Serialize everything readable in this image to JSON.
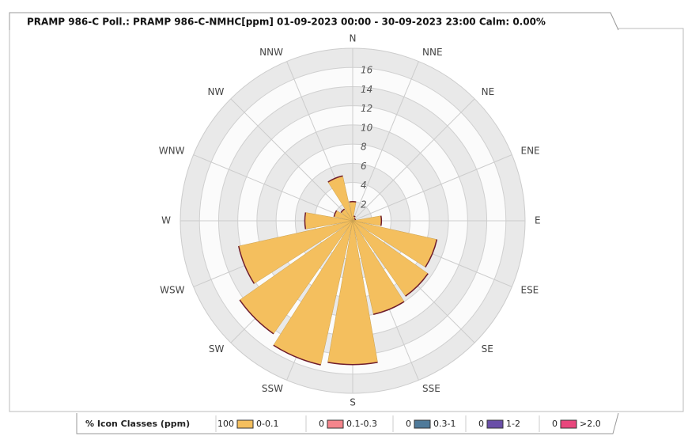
{
  "chart_data": {
    "type": "polar_bar",
    "title": "PRAMP 986-C Poll.: PRAMP 986-C-NMHC[ppm] 01-09-2023 00:00 - 30-09-2023 23:00 Calm: 0.00%",
    "categories": [
      "N",
      "NNE",
      "NE",
      "ENE",
      "E",
      "ESE",
      "SE",
      "SSE",
      "S",
      "SSW",
      "SW",
      "WSW",
      "W",
      "WNW",
      "NW",
      "NNW"
    ],
    "values": [
      2,
      0.5,
      0.3,
      0.3,
      3,
      9,
      9.6,
      10,
      15,
      15.4,
      14.4,
      12.2,
      5,
      2,
      1.5,
      4.8
    ],
    "color": "#f4bf5e",
    "rlim": [
      0,
      18
    ],
    "rticks": [
      2,
      4,
      6,
      8,
      10,
      12,
      14,
      16
    ],
    "legend_title": "% Icon  Classes (ppm)",
    "classes": [
      {
        "percent": 100,
        "name": "0-0.1",
        "color": "#f4bf5e"
      },
      {
        "percent": 0,
        "name": "0.1-0.3",
        "color": "#f4858c"
      },
      {
        "percent": 0,
        "name": "0.3-1",
        "color": "#4f7a9a"
      },
      {
        "percent": 0,
        "name": "1-2",
        "color": "#6a4fa8"
      },
      {
        "percent": 0,
        "name": ">2.0",
        "color": "#e8467c"
      }
    ]
  }
}
